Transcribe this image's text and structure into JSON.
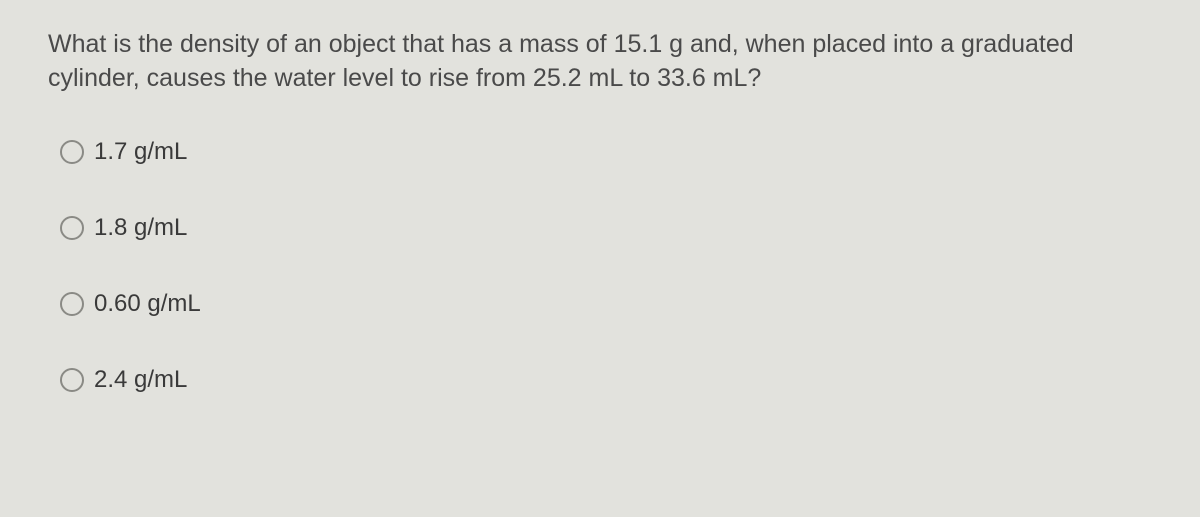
{
  "question": {
    "text": "What is the density of an object that has a mass of 15.1 g and, when placed into a graduated cylinder, causes the water level to rise from 25.2 mL to 33.6 mL?",
    "text_color": "#4a4a4a",
    "fontsize": 25
  },
  "options": [
    {
      "label": "1.7 g/mL"
    },
    {
      "label": "1.8 g/mL"
    },
    {
      "label": "0.60 g/mL"
    },
    {
      "label": "2.4 g/mL"
    }
  ],
  "styling": {
    "background_color": "#e2e2dd",
    "radio_border_color": "#8a8a85",
    "option_text_color": "#3a3a3a",
    "option_fontsize": 24
  }
}
